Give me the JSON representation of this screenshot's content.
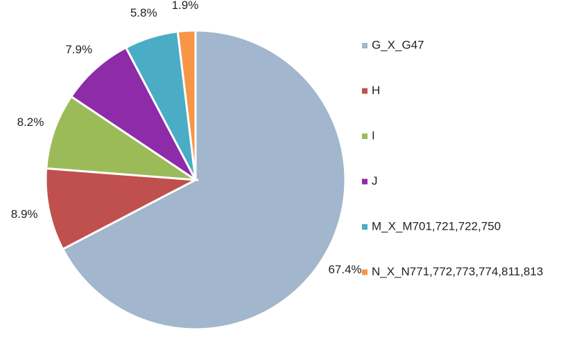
{
  "chart_data": {
    "type": "pie",
    "categories": [
      "G_X_G47",
      "H",
      "I",
      "J",
      "M_X_M701,721,722,750",
      "N_X_N771,772,773,774,811,813"
    ],
    "values": [
      67.4,
      8.9,
      8.2,
      7.9,
      5.8,
      1.9
    ],
    "value_labels": [
      "67.4%",
      "8.9%",
      "8.2%",
      "7.9%",
      "5.8%",
      "1.9%"
    ],
    "colors": [
      "#a2b6cd",
      "#c0504d",
      "#9bbb59",
      "#8e2ba8",
      "#4bacc6",
      "#f79646"
    ],
    "legend": "right"
  }
}
